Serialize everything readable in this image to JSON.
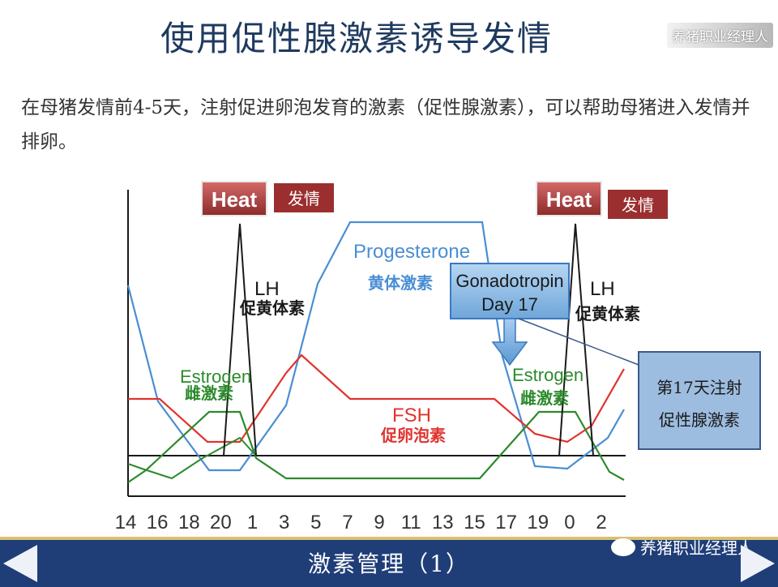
{
  "title": "使用促性腺激素诱导发情",
  "watermark_top": "养猪职业经理人",
  "intro": "在母猪发情前4-5天，注射促进卵泡发育的激素（促性腺激素），可以帮助母猪进入发情并排卵。",
  "diagram": {
    "x_ticks": [
      "14",
      "16",
      "18",
      "20",
      "1",
      "3",
      "5",
      "7",
      "9",
      "11",
      "13",
      "15",
      "17",
      "19",
      "0",
      "2"
    ],
    "heat_label": "Heat",
    "heat_cn": "发情",
    "lh_label": "LH",
    "lh_cn": "促黄体素",
    "progesterone_label": "Progesterone",
    "progesterone_cn": "黄体激素",
    "estrogen_label": "Estrogen",
    "estrogen_cn": "雌激素",
    "fsh_label": "FSH",
    "fsh_cn": "促卵泡素",
    "gonadotropin_line1": "Gonadotropin",
    "gonadotropin_line2": "Day 17",
    "callout_line1": "第17天注射",
    "callout_line2": "促性腺激素",
    "colors": {
      "progesterone": "#4a8ed3",
      "fsh": "#e0342f",
      "estrogen": "#2c8a2c",
      "lh": "#1a1a1a",
      "heat_box": "#b03a3a",
      "gonadotropin_box": "#8dbde8",
      "callout_box": "#9dbde0"
    }
  },
  "footer": {
    "title": "激素管理（1）",
    "badge": "养猪职业经理人",
    "prev_icon": "triangle-left-icon",
    "next_icon": "triangle-right-icon"
  }
}
